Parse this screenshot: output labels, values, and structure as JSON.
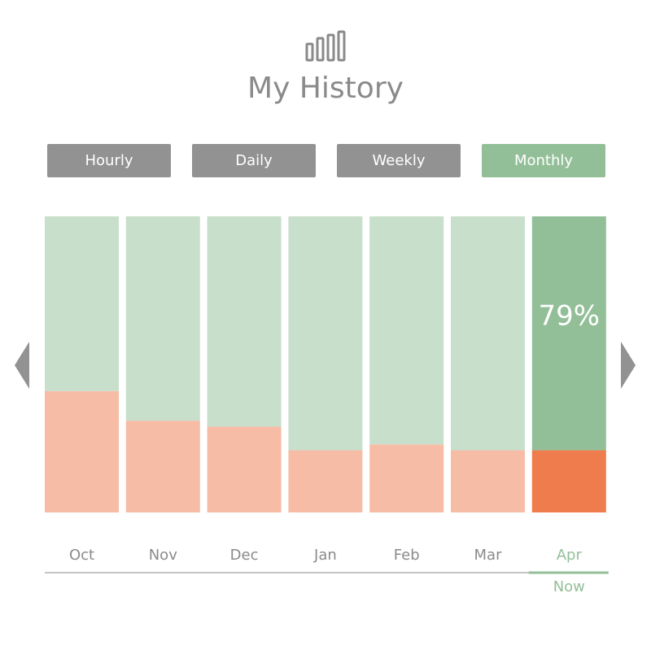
{
  "header": {
    "title": "My History"
  },
  "tabs": {
    "items": [
      "Hourly",
      "Daily",
      "Weekly",
      "Monthly"
    ],
    "active": 3,
    "color": "#929292",
    "active_color": "#93bf98"
  },
  "chart_data": {
    "type": "stacked-bar",
    "categories": [
      "Oct",
      "Nov",
      "Dec",
      "Jan",
      "Feb",
      "Mar",
      "Apr"
    ],
    "series": [
      {
        "color": "#f6bca6",
        "highlight_color": "#ef7c4c",
        "values": [
          41,
          31,
          29,
          21,
          23,
          21,
          21
        ]
      },
      {
        "color": "#c8dfcc",
        "highlight_color": "#93bf98",
        "values": [
          59,
          69,
          71,
          79,
          77,
          79,
          79
        ],
        "value_labels": [
          null,
          null,
          null,
          null,
          null,
          null,
          "79%"
        ]
      }
    ],
    "ylim": [
      0,
      100
    ],
    "annotation": {
      "text": "Now",
      "category_index": 6
    }
  }
}
